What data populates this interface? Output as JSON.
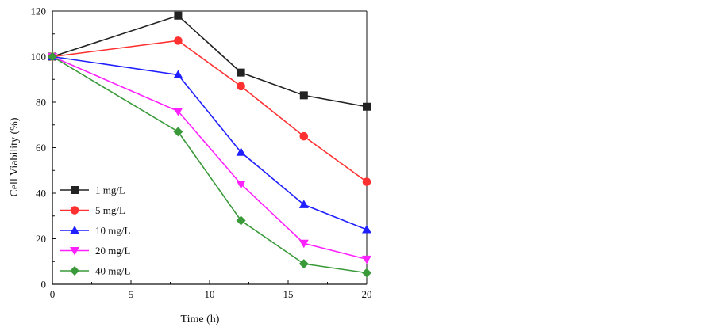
{
  "chart_data": {
    "type": "line",
    "title": "",
    "xlabel": "Time (h)",
    "ylabel": "Cell Viability (%)",
    "xlim": [
      0,
      20
    ],
    "ylim": [
      0,
      120
    ],
    "xticks": [
      0,
      5,
      10,
      15,
      20
    ],
    "yticks": [
      0,
      20,
      40,
      60,
      80,
      100,
      120
    ],
    "grid": false,
    "legend_position": "bottom-left",
    "series": [
      {
        "name": "1 mg/L",
        "color": "#222222",
        "marker": "square",
        "x": [
          0,
          8,
          12,
          16,
          20
        ],
        "y": [
          100,
          118,
          93,
          83,
          78
        ]
      },
      {
        "name": "5 mg/L",
        "color": "#ff3030",
        "marker": "circle",
        "x": [
          0,
          8,
          12,
          16,
          20
        ],
        "y": [
          100,
          107,
          87,
          65,
          45
        ]
      },
      {
        "name": "10 mg/L",
        "color": "#1f1fff",
        "marker": "triangle-up",
        "x": [
          0,
          8,
          12,
          16,
          20
        ],
        "y": [
          100,
          92,
          58,
          35,
          24
        ]
      },
      {
        "name": "20 mg/L",
        "color": "#ff20ff",
        "marker": "triangle-down",
        "x": [
          0,
          8,
          12,
          16,
          20
        ],
        "y": [
          100,
          76,
          44,
          18,
          11
        ]
      },
      {
        "name": "40 mg/L",
        "color": "#3a9a3a",
        "marker": "diamond",
        "x": [
          0,
          8,
          12,
          16,
          20
        ],
        "y": [
          100,
          67,
          28,
          9,
          5
        ]
      }
    ]
  }
}
